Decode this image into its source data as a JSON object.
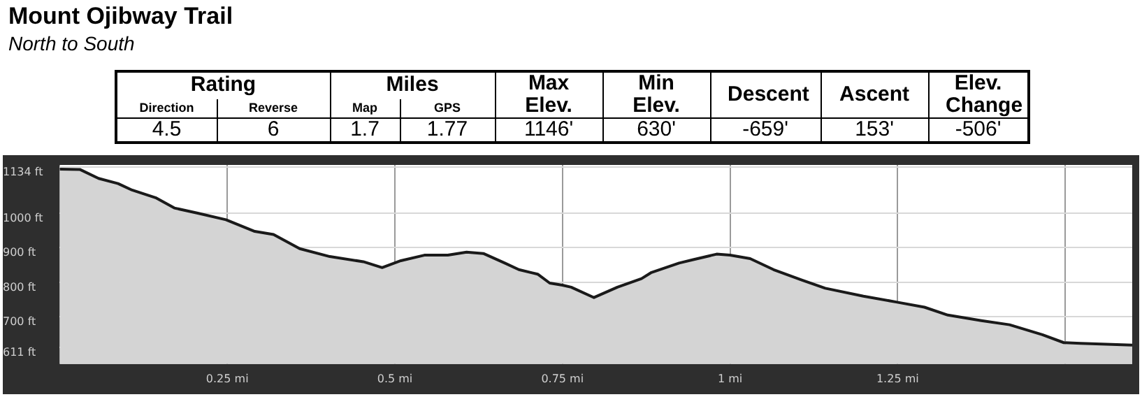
{
  "chart_data": {
    "type": "area",
    "title": "Mount Ojibway Trail",
    "subtitle": "North to South",
    "annotations": [
      "Rating",
      "Miles",
      "Max Elev.",
      "Min Elev.",
      "Descent",
      "Ascent",
      "Elev. Change",
      "Direction",
      "Reverse",
      "Map",
      "GPS",
      "4.5",
      "6",
      "1.7",
      "1.77",
      "1146'",
      "630'",
      "-659'",
      "153'",
      "-506'"
    ],
    "series": [
      {
        "color": "#1a1a1a",
        "x": [
          0,
          0.03,
          0.058,
          0.087,
          0.108,
          0.143,
          0.171,
          0.206,
          0.248,
          0.291,
          0.319,
          0.358,
          0.403,
          0.453,
          0.481,
          0.509,
          0.544,
          0.579,
          0.607,
          0.632,
          0.664,
          0.685,
          0.713,
          0.731,
          0.75,
          0.763,
          0.797,
          0.832,
          0.868,
          0.882,
          0.924,
          0.945,
          0.98,
          1.0,
          1.03,
          1.065,
          1.107,
          1.142,
          1.199,
          1.248,
          1.29,
          1.325,
          1.375,
          1.417,
          1.466,
          1.498,
          1.523,
          1.6
        ],
        "values": [
          1128,
          1127,
          1101,
          1086,
          1067,
          1045,
          1015,
          1000,
          981,
          947,
          938,
          897,
          874,
          859,
          842,
          862,
          878,
          878,
          887,
          883,
          855,
          836,
          823,
          797,
          791,
          785,
          755,
          785,
          810,
          827,
          855,
          865,
          881,
          878,
          868,
          836,
          806,
          782,
          759,
          742,
          727,
          704,
          688,
          676,
          647,
          624,
          622,
          617
        ]
      }
    ],
    "xlim": [
      0,
      1.6
    ],
    "xticks": [
      {
        "value": 0.25,
        "label": "0.25 mi"
      },
      {
        "value": 0.5,
        "label": "0.5 mi"
      },
      {
        "value": 0.75,
        "label": "0.75 mi"
      },
      {
        "value": 1,
        "label": "1 mi"
      },
      {
        "value": 1.25,
        "label": "1.25 mi"
      },
      {
        "value": 1.5,
        "label": null
      }
    ],
    "ylim": [
      562,
      1140
    ],
    "yticks": [
      {
        "value": 611,
        "label": "611 ft"
      },
      {
        "value": 700,
        "label": "700 ft"
      },
      {
        "value": 800,
        "label": "800 ft"
      },
      {
        "value": 900,
        "label": "900 ft"
      },
      {
        "value": 1000,
        "label": "1000 ft"
      },
      {
        "value": 1134,
        "label": "1134 ft"
      }
    ],
    "grid": true,
    "legend": false,
    "marker": "none",
    "line_style": "solid"
  }
}
